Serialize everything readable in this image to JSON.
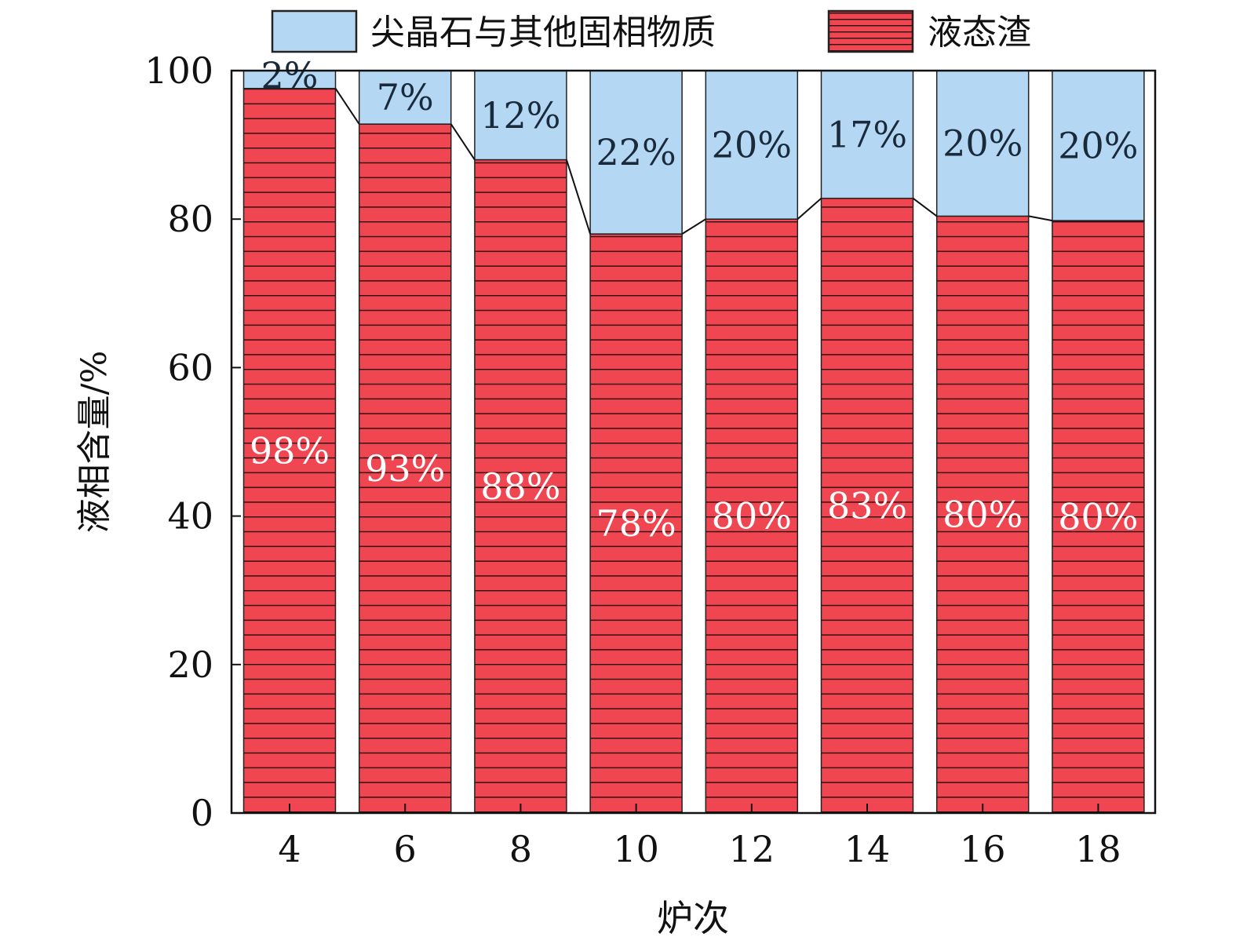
{
  "chart_data": {
    "type": "bar",
    "stacked": true,
    "categories": [
      "4",
      "6",
      "8",
      "10",
      "12",
      "14",
      "16",
      "18"
    ],
    "series": [
      {
        "name": "液态渣",
        "values": [
          97.6,
          92.8,
          88.0,
          78.0,
          80.0,
          82.8,
          80.4,
          79.8
        ],
        "labels": [
          "98%",
          "93%",
          "88%",
          "78%",
          "80%",
          "83%",
          "80%",
          "80%"
        ],
        "color": "#f04652",
        "hatch": "horizontal"
      },
      {
        "name": "尖晶石与其他固相物质",
        "values": [
          2.4,
          7.2,
          12.0,
          22.0,
          20.0,
          17.2,
          19.6,
          20.2
        ],
        "labels": [
          "2%",
          "7%",
          "12%",
          "22%",
          "20%",
          "17%",
          "20%",
          "20%"
        ],
        "color": "#b4d8f4"
      }
    ],
    "xlabel": "炉次",
    "ylabel": "液相含量/%",
    "ylim": [
      0,
      100
    ],
    "yticks": [
      "0",
      "20",
      "40",
      "60",
      "80",
      "100"
    ],
    "legend_position": "top",
    "grid": false,
    "connector_lines": true
  }
}
